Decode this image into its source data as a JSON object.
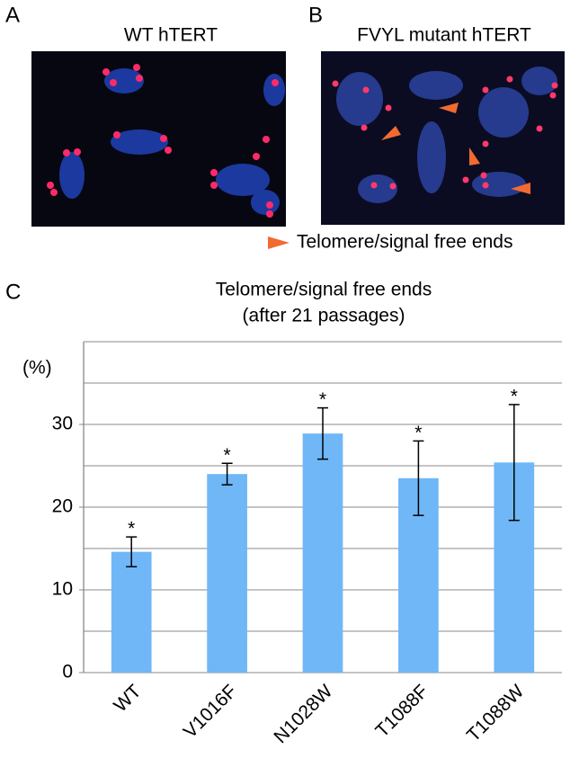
{
  "panels": [
    {
      "label": "A",
      "title": "WT hTERT"
    },
    {
      "label": "B",
      "title": "FVYL mutant hTERT"
    }
  ],
  "arrow_legend": "Telomere/signal free ends",
  "chart_data": {
    "type": "bar",
    "panel_label": "C",
    "title": "Telomere/signal free ends",
    "subtitle": "(after 21 passages)",
    "y_label": "(%)",
    "categories": [
      "WT",
      "V1016F",
      "N1028W",
      "T1088F",
      "T1088W"
    ],
    "values": [
      14.6,
      24,
      28.9,
      23.5,
      25.4
    ],
    "errors": [
      1.8,
      1.3,
      3.1,
      4.5,
      7
    ],
    "markers": [
      "*",
      "*",
      "*",
      "*",
      "*"
    ],
    "color": "#6fb7f7",
    "ylim": [
      0,
      40
    ],
    "yticks": [
      0,
      10,
      20,
      30
    ],
    "gridlines": [
      0,
      5,
      10,
      15,
      20,
      25,
      30,
      35,
      40
    ],
    "grid": true
  }
}
